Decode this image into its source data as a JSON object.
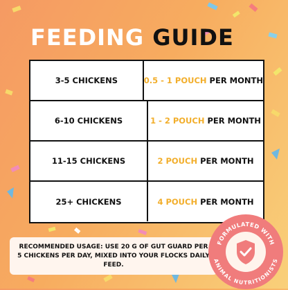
{
  "title": {
    "word1": "FEEDING",
    "word2": "GUIDE"
  },
  "rows": [
    {
      "flock": "3-5 CHICKENS",
      "amount": "0.5 - 1 POUCH",
      "suffix": " PER MONTH"
    },
    {
      "flock": "6-10 CHICKENS",
      "amount": "1 - 2 POUCH",
      "suffix": " PER MONTH"
    },
    {
      "flock": "11-15 CHICKENS",
      "amount": "2 POUCH",
      "suffix": " PER MONTH"
    },
    {
      "flock": "25+ CHICKENS",
      "amount": "4 POUCH",
      "suffix": " PER MONTH"
    }
  ],
  "banner": {
    "text": "RECOMMENDED USAGE: USE 20 G OF GUT GUARD PER 5 CHICKENS PER DAY, MIXED INTO YOUR FLOCKS DAILY FEED."
  },
  "badge": {
    "top_text": "FORMULATED WITH",
    "bottom_text": "ANIMAL NUTRITIONISTS",
    "icon": "shield-check-icon"
  },
  "colors": {
    "accent": "#f2ae2b",
    "badge": "#f07c7c",
    "background_start": "#f59a63",
    "background_end": "#f9d07a"
  }
}
